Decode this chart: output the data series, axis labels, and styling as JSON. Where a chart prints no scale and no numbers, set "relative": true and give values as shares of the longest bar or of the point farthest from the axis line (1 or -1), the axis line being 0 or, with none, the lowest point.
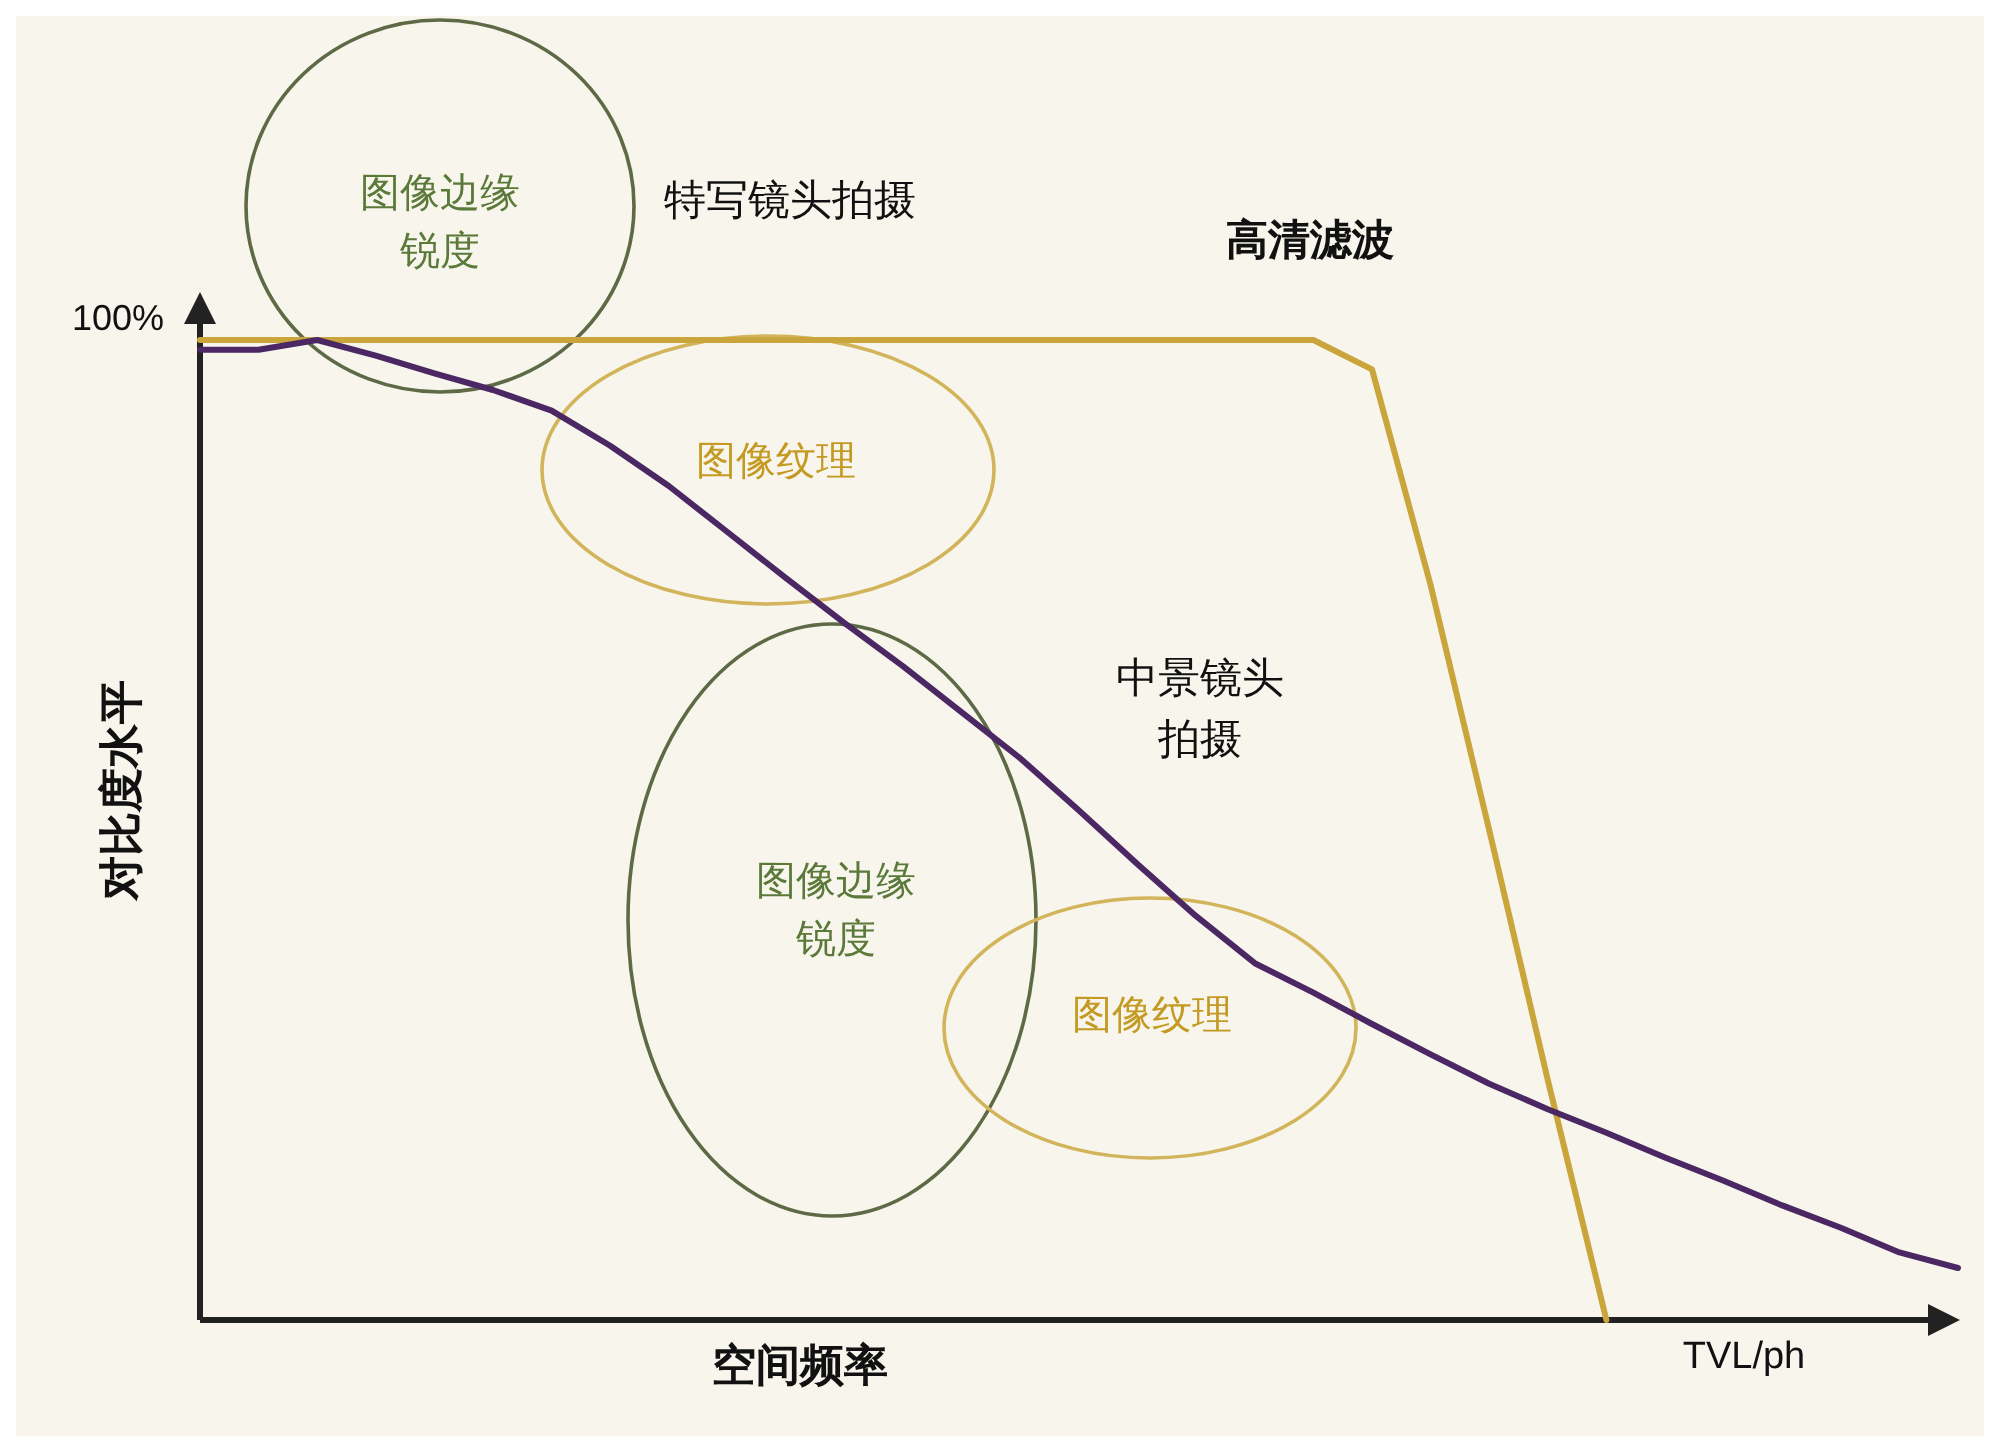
{
  "chart_data": {
    "type": "line",
    "relative": true,
    "xlabel": "空间频率",
    "ylabel": "对比度水平",
    "categories": [
      null,
      null,
      null,
      null,
      null,
      null,
      null,
      null,
      null,
      null,
      null,
      null,
      null,
      null,
      null,
      null,
      null,
      null,
      null,
      null,
      null,
      null,
      null,
      null,
      null,
      null,
      null,
      null,
      null,
      null,
      null
    ],
    "series": [
      {
        "color": "#c9a53c",
        "values": [
          1,
          1,
          1,
          1,
          1,
          1,
          1,
          1,
          1,
          1,
          1,
          1,
          1,
          1,
          1,
          1,
          1,
          1,
          1,
          1,
          0.97,
          0.75,
          0.5,
          0.245,
          0,
          null,
          null,
          null,
          null,
          null,
          null
        ]
      },
      {
        "color": "#4b2763",
        "values": [
          0.99,
          0.99,
          1,
          0.984,
          0.966,
          0.949,
          0.928,
          0.892,
          0.851,
          0.804,
          0.757,
          0.711,
          0.667,
          0.62,
          0.573,
          0.52,
          0.465,
          0.412,
          0.364,
          0.334,
          0.302,
          0.271,
          0.241,
          0.215,
          0.191,
          0.166,
          0.142,
          0.117,
          0.094,
          0.069,
          0.053
        ]
      }
    ],
    "annotations": [
      "高清滤波",
      "特写镜头拍摄",
      "中景镜头拍摄",
      "图像边缘锐度",
      "图像纹理",
      "图像边缘锐度",
      "图像纹理",
      "100%",
      "TVL/ph"
    ]
  }
}
